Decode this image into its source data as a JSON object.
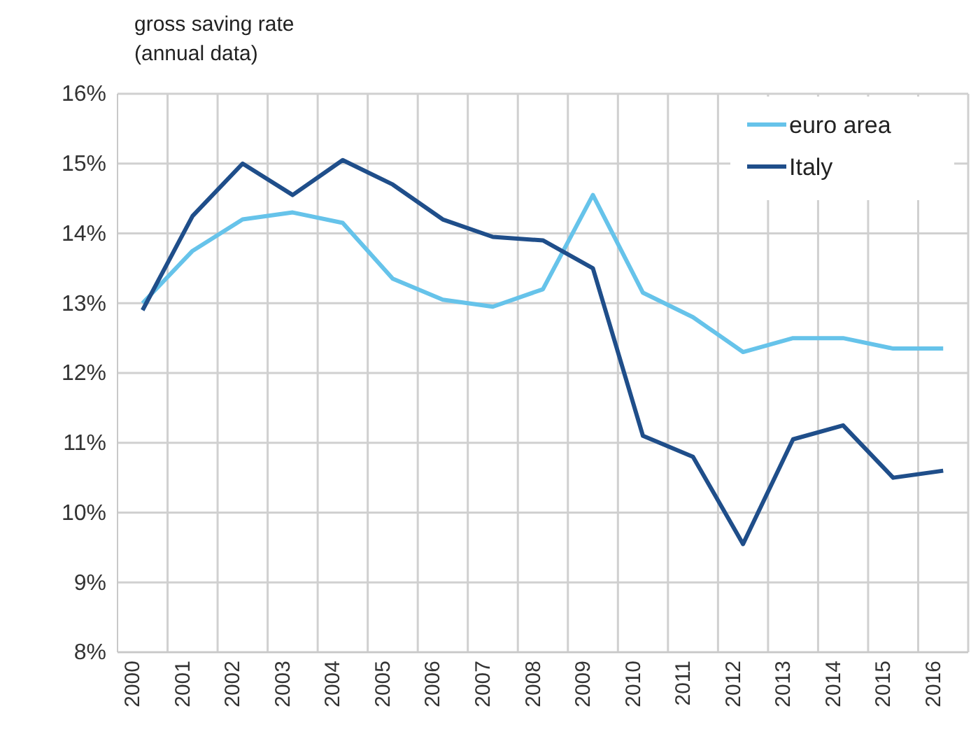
{
  "chart_data": {
    "type": "line",
    "title": "gross saving rate",
    "subtitle": "(annual data)",
    "categories": [
      "2000",
      "2001",
      "2002",
      "2003",
      "2004",
      "2005",
      "2006",
      "2007",
      "2008",
      "2009",
      "2010",
      "2011",
      "2012",
      "2013",
      "2014",
      "2015",
      "2016"
    ],
    "series": [
      {
        "name": "euro area",
        "color": "#66c3ea",
        "values": [
          13.0,
          13.75,
          14.2,
          14.3,
          14.15,
          13.35,
          13.05,
          12.95,
          13.2,
          14.55,
          13.15,
          12.8,
          12.3,
          12.5,
          12.5,
          12.35,
          12.35
        ]
      },
      {
        "name": "Italy",
        "color": "#1f4e8a",
        "values": [
          12.9,
          14.25,
          15.0,
          14.55,
          15.05,
          14.7,
          14.2,
          13.95,
          13.9,
          13.5,
          11.1,
          10.8,
          9.55,
          11.05,
          11.25,
          10.5,
          10.6
        ]
      }
    ],
    "ylim": [
      8,
      16
    ],
    "yticks": [
      {
        "value": 8,
        "label": "8%"
      },
      {
        "value": 9,
        "label": "9%"
      },
      {
        "value": 10,
        "label": "10%"
      },
      {
        "value": 11,
        "label": "11%"
      },
      {
        "value": 12,
        "label": "12%"
      },
      {
        "value": 13,
        "label": "13%"
      },
      {
        "value": 14,
        "label": "14%"
      },
      {
        "value": 15,
        "label": "15%"
      },
      {
        "value": 16,
        "label": "16%"
      }
    ],
    "grid": true,
    "legend": "top right",
    "marker": "none",
    "line_style": "solid"
  }
}
